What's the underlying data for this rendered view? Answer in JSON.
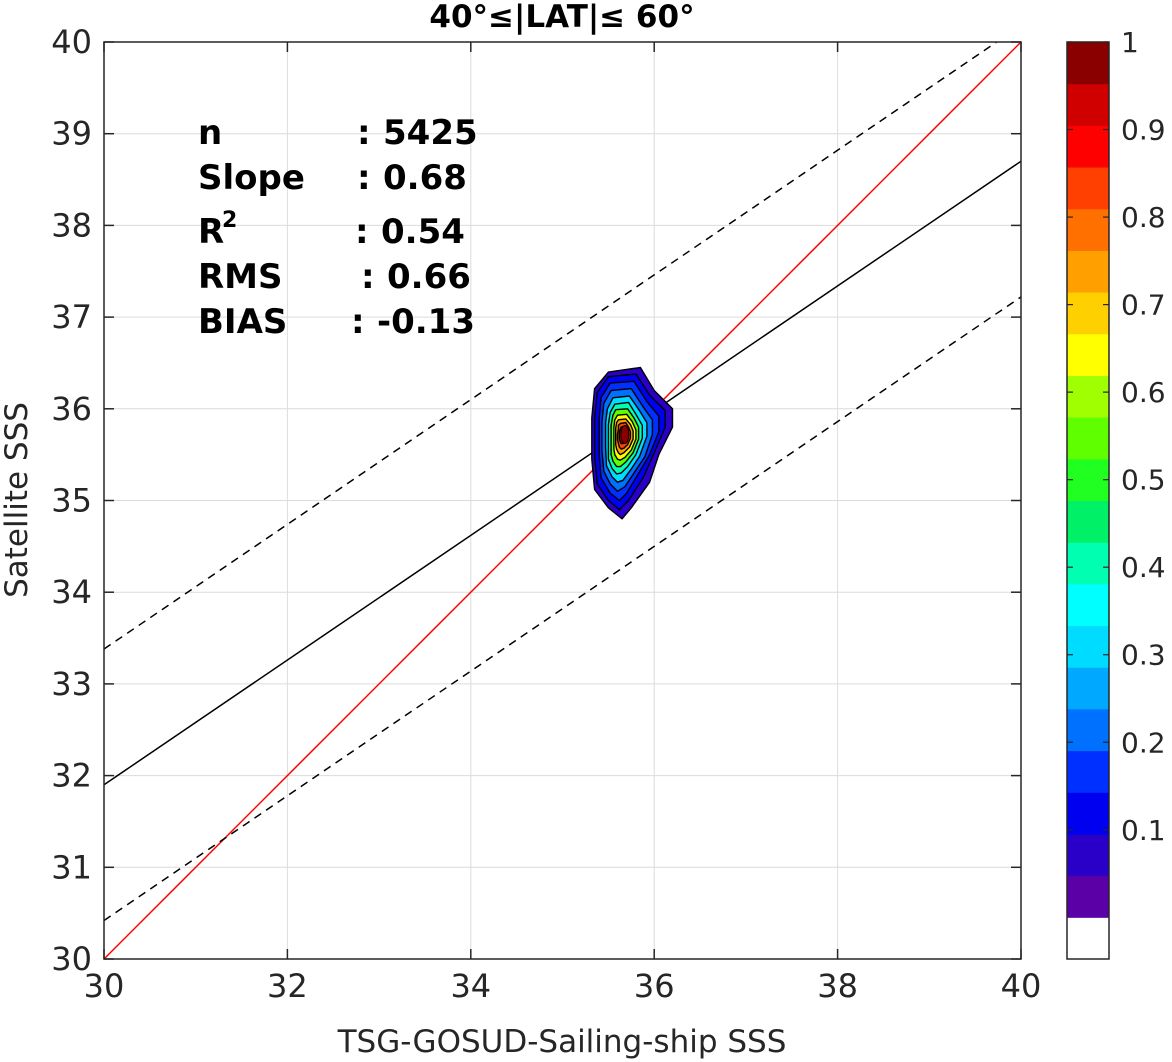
{
  "chart_data": {
    "type": "density_contour",
    "title": "40°≤|LAT|≤ 60°",
    "xlabel": "TSG-GOSUD-Sailing-ship SSS",
    "ylabel": "Satellite SSS",
    "xlim": [
      30,
      40
    ],
    "ylim": [
      30,
      40
    ],
    "xticks": [
      "30",
      "32",
      "34",
      "36",
      "38",
      "40"
    ],
    "yticks": [
      "30",
      "31",
      "32",
      "33",
      "34",
      "35",
      "36",
      "37",
      "38",
      "39",
      "40"
    ],
    "grid": true,
    "stats": {
      "n": {
        "label": "n",
        "sep": ":",
        "value": "5425"
      },
      "slope": {
        "label": "Slope",
        "sep": ":",
        "value": "0.68"
      },
      "r2": {
        "label": "R",
        "sup": "2",
        "sep": ":",
        "value": "0.54"
      },
      "rms": {
        "label": "RMS",
        "sep": ":",
        "value": "0.66"
      },
      "bias": {
        "label": "BIAS",
        "sep": ":",
        "value": "-0.13"
      }
    },
    "lines": {
      "identity": {
        "x": [
          30,
          40
        ],
        "y": [
          30,
          40
        ],
        "color": "#ff0000",
        "style": "solid"
      },
      "regression": {
        "x": [
          30,
          40
        ],
        "y": [
          31.9,
          38.7
        ],
        "color": "#000000",
        "style": "solid"
      },
      "upper_bound": {
        "x": [
          30,
          40
        ],
        "y": [
          33.38,
          40.18
        ],
        "color": "#000000",
        "style": "dashed"
      },
      "lower_bound": {
        "x": [
          30,
          40
        ],
        "y": [
          30.42,
          37.22
        ],
        "color": "#000000",
        "style": "dashed"
      }
    },
    "density_peak": {
      "x": 35.68,
      "y": 35.72,
      "value": 1.0
    },
    "density_contours": [
      {
        "level": 0.05,
        "points": [
          [
            35.5,
            36.4
          ],
          [
            35.85,
            36.45
          ],
          [
            36.0,
            36.2
          ],
          [
            36.2,
            36.0
          ],
          [
            36.2,
            35.8
          ],
          [
            36.05,
            35.5
          ],
          [
            35.95,
            35.2
          ],
          [
            35.75,
            34.92
          ],
          [
            35.65,
            34.8
          ],
          [
            35.5,
            34.92
          ],
          [
            35.35,
            35.12
          ],
          [
            35.32,
            35.45
          ],
          [
            35.32,
            35.9
          ],
          [
            35.35,
            36.22
          ]
        ]
      },
      {
        "level": 0.1,
        "points": [
          [
            35.5,
            36.35
          ],
          [
            35.8,
            36.38
          ],
          [
            35.95,
            36.15
          ],
          [
            36.12,
            35.98
          ],
          [
            36.12,
            35.8
          ],
          [
            36.0,
            35.52
          ],
          [
            35.88,
            35.25
          ],
          [
            35.72,
            35.0
          ],
          [
            35.62,
            34.9
          ],
          [
            35.5,
            35.0
          ],
          [
            35.38,
            35.18
          ],
          [
            35.35,
            35.48
          ],
          [
            35.35,
            35.9
          ],
          [
            35.38,
            36.18
          ]
        ]
      },
      {
        "level": 0.15,
        "points": [
          [
            35.52,
            36.28
          ],
          [
            35.78,
            36.3
          ],
          [
            35.92,
            36.08
          ],
          [
            36.05,
            35.92
          ],
          [
            36.05,
            35.75
          ],
          [
            35.95,
            35.5
          ],
          [
            35.82,
            35.28
          ],
          [
            35.7,
            35.08
          ],
          [
            35.62,
            35.0
          ],
          [
            35.52,
            35.08
          ],
          [
            35.42,
            35.25
          ],
          [
            35.4,
            35.52
          ],
          [
            35.4,
            35.88
          ],
          [
            35.42,
            36.12
          ]
        ]
      },
      {
        "level": 0.2,
        "points": [
          [
            35.53,
            36.2
          ],
          [
            35.75,
            36.22
          ],
          [
            35.88,
            36.02
          ],
          [
            35.98,
            35.88
          ],
          [
            35.98,
            35.72
          ],
          [
            35.9,
            35.48
          ],
          [
            35.78,
            35.3
          ],
          [
            35.68,
            35.15
          ],
          [
            35.6,
            35.1
          ],
          [
            35.52,
            35.18
          ],
          [
            35.45,
            35.32
          ],
          [
            35.43,
            35.55
          ],
          [
            35.43,
            35.85
          ],
          [
            35.45,
            36.06
          ]
        ]
      },
      {
        "level": 0.3,
        "points": [
          [
            35.55,
            36.12
          ],
          [
            35.73,
            36.14
          ],
          [
            35.84,
            35.98
          ],
          [
            35.92,
            35.85
          ],
          [
            35.92,
            35.7
          ],
          [
            35.84,
            35.48
          ],
          [
            35.74,
            35.33
          ],
          [
            35.66,
            35.22
          ],
          [
            35.6,
            35.2
          ],
          [
            35.54,
            35.26
          ],
          [
            35.48,
            35.38
          ],
          [
            35.47,
            35.57
          ],
          [
            35.47,
            35.85
          ],
          [
            35.49,
            36.0
          ]
        ]
      },
      {
        "level": 0.4,
        "points": [
          [
            35.57,
            36.05
          ],
          [
            35.72,
            36.07
          ],
          [
            35.8,
            35.94
          ],
          [
            35.87,
            35.82
          ],
          [
            35.87,
            35.68
          ],
          [
            35.8,
            35.5
          ],
          [
            35.71,
            35.37
          ],
          [
            35.64,
            35.3
          ],
          [
            35.59,
            35.29
          ],
          [
            35.54,
            35.35
          ],
          [
            35.5,
            35.45
          ],
          [
            35.5,
            35.6
          ],
          [
            35.5,
            35.83
          ],
          [
            35.52,
            35.96
          ]
        ]
      },
      {
        "level": 0.5,
        "points": [
          [
            35.58,
            35.99
          ],
          [
            35.71,
            36.0
          ],
          [
            35.78,
            35.9
          ],
          [
            35.83,
            35.8
          ],
          [
            35.83,
            35.67
          ],
          [
            35.77,
            35.52
          ],
          [
            35.69,
            35.42
          ],
          [
            35.63,
            35.37
          ],
          [
            35.59,
            35.37
          ],
          [
            35.55,
            35.43
          ],
          [
            35.53,
            35.5
          ],
          [
            35.53,
            35.63
          ],
          [
            35.53,
            35.82
          ],
          [
            35.55,
            35.93
          ]
        ]
      },
      {
        "level": 0.6,
        "points": [
          [
            35.6,
            35.93
          ],
          [
            35.7,
            35.94
          ],
          [
            35.76,
            35.86
          ],
          [
            35.8,
            35.77
          ],
          [
            35.8,
            35.67
          ],
          [
            35.75,
            35.55
          ],
          [
            35.68,
            35.47
          ],
          [
            35.63,
            35.44
          ],
          [
            35.6,
            35.45
          ],
          [
            35.57,
            35.5
          ],
          [
            35.56,
            35.56
          ],
          [
            35.56,
            35.66
          ],
          [
            35.56,
            35.8
          ],
          [
            35.57,
            35.88
          ]
        ]
      },
      {
        "level": 0.7,
        "points": [
          [
            35.61,
            35.88
          ],
          [
            35.69,
            35.89
          ],
          [
            35.74,
            35.83
          ],
          [
            35.77,
            35.76
          ],
          [
            35.77,
            35.67
          ],
          [
            35.73,
            35.58
          ],
          [
            35.67,
            35.52
          ],
          [
            35.63,
            35.5
          ],
          [
            35.61,
            35.52
          ],
          [
            35.59,
            35.56
          ],
          [
            35.58,
            35.61
          ],
          [
            35.58,
            35.69
          ],
          [
            35.58,
            35.79
          ],
          [
            35.59,
            35.85
          ]
        ]
      },
      {
        "level": 0.8,
        "points": [
          [
            35.63,
            35.84
          ],
          [
            35.69,
            35.85
          ],
          [
            35.72,
            35.8
          ],
          [
            35.74,
            35.75
          ],
          [
            35.74,
            35.68
          ],
          [
            35.71,
            35.61
          ],
          [
            35.67,
            35.57
          ],
          [
            35.64,
            35.56
          ],
          [
            35.62,
            35.58
          ],
          [
            35.61,
            35.62
          ],
          [
            35.6,
            35.66
          ],
          [
            35.6,
            35.72
          ],
          [
            35.61,
            35.78
          ],
          [
            35.61,
            35.82
          ]
        ]
      },
      {
        "level": 0.9,
        "points": [
          [
            35.64,
            35.8
          ],
          [
            35.68,
            35.81
          ],
          [
            35.7,
            35.78
          ],
          [
            35.71,
            35.74
          ],
          [
            35.71,
            35.69
          ],
          [
            35.69,
            35.64
          ],
          [
            35.66,
            35.62
          ],
          [
            35.64,
            35.62
          ],
          [
            35.63,
            35.64
          ],
          [
            35.62,
            35.67
          ],
          [
            35.62,
            35.71
          ],
          [
            35.62,
            35.75
          ],
          [
            35.63,
            35.78
          ]
        ]
      }
    ],
    "colorbar": {
      "ticks": [
        "0.1",
        "0.2",
        "0.3",
        "0.4",
        "0.5",
        "0.6",
        "0.7",
        "0.8",
        "0.9",
        "1"
      ],
      "colors": [
        "#ffffff",
        "#5a00a6",
        "#2a00c8",
        "#0000f0",
        "#0030ff",
        "#0070ff",
        "#00a8ff",
        "#00dcff",
        "#00ffff",
        "#00ffb0",
        "#00f068",
        "#20ff20",
        "#60ff00",
        "#a0ff00",
        "#ffff00",
        "#ffd000",
        "#ffa000",
        "#ff7000",
        "#ff4000",
        "#ff0000",
        "#d00000",
        "#8a0000"
      ]
    }
  }
}
